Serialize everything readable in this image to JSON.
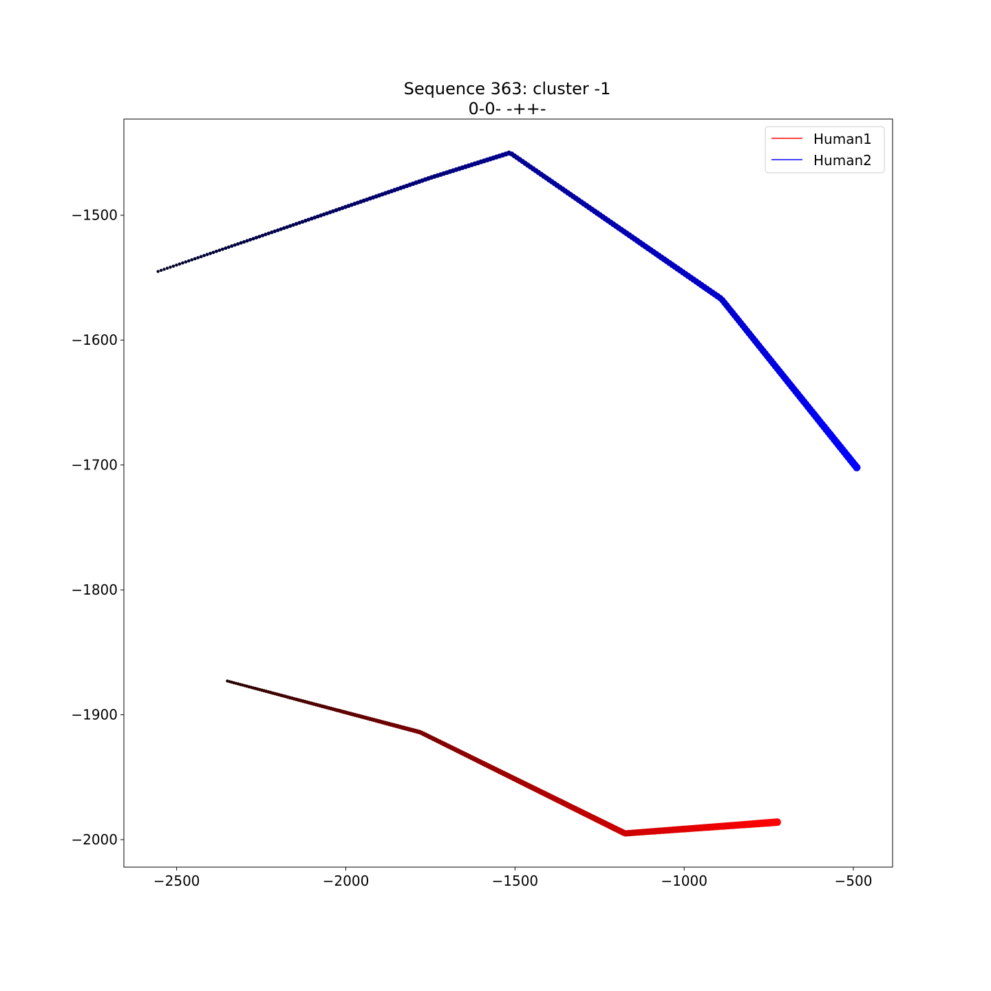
{
  "chart_data": {
    "type": "scatter",
    "title": "Sequence 363: cluster -1",
    "subtitle": "0-0- -++-",
    "xlabel": "",
    "ylabel": "",
    "xlim": [
      -2656,
      -384
    ],
    "ylim": [
      -2022,
      -1423
    ],
    "x_ticks": [
      -2500,
      -2000,
      -1500,
      -1000,
      -500
    ],
    "y_ticks": [
      -2000,
      -1900,
      -1800,
      -1700,
      -1600,
      -1500
    ],
    "grid": false,
    "legend_position": "top-right",
    "series": [
      {
        "name": "Human1",
        "color": "#ff0000",
        "start_color": "#200000",
        "points": [
          [
            -2350,
            -1873
          ],
          [
            -1780,
            -1914
          ],
          [
            -1175,
            -1995
          ],
          [
            -725,
            -1986
          ]
        ]
      },
      {
        "name": "Human2",
        "color": "#0000ff",
        "start_color": "#000020",
        "points": [
          [
            -2555,
            -1545
          ],
          [
            -1750,
            -1470
          ],
          [
            -1515,
            -1450
          ],
          [
            -890,
            -1567
          ],
          [
            -490,
            -1702
          ]
        ]
      }
    ]
  },
  "labels": {
    "title": "Sequence 363: cluster -1",
    "subtitle": "0-0- -++-",
    "legend_human1": "Human1",
    "legend_human2": "Human2"
  }
}
